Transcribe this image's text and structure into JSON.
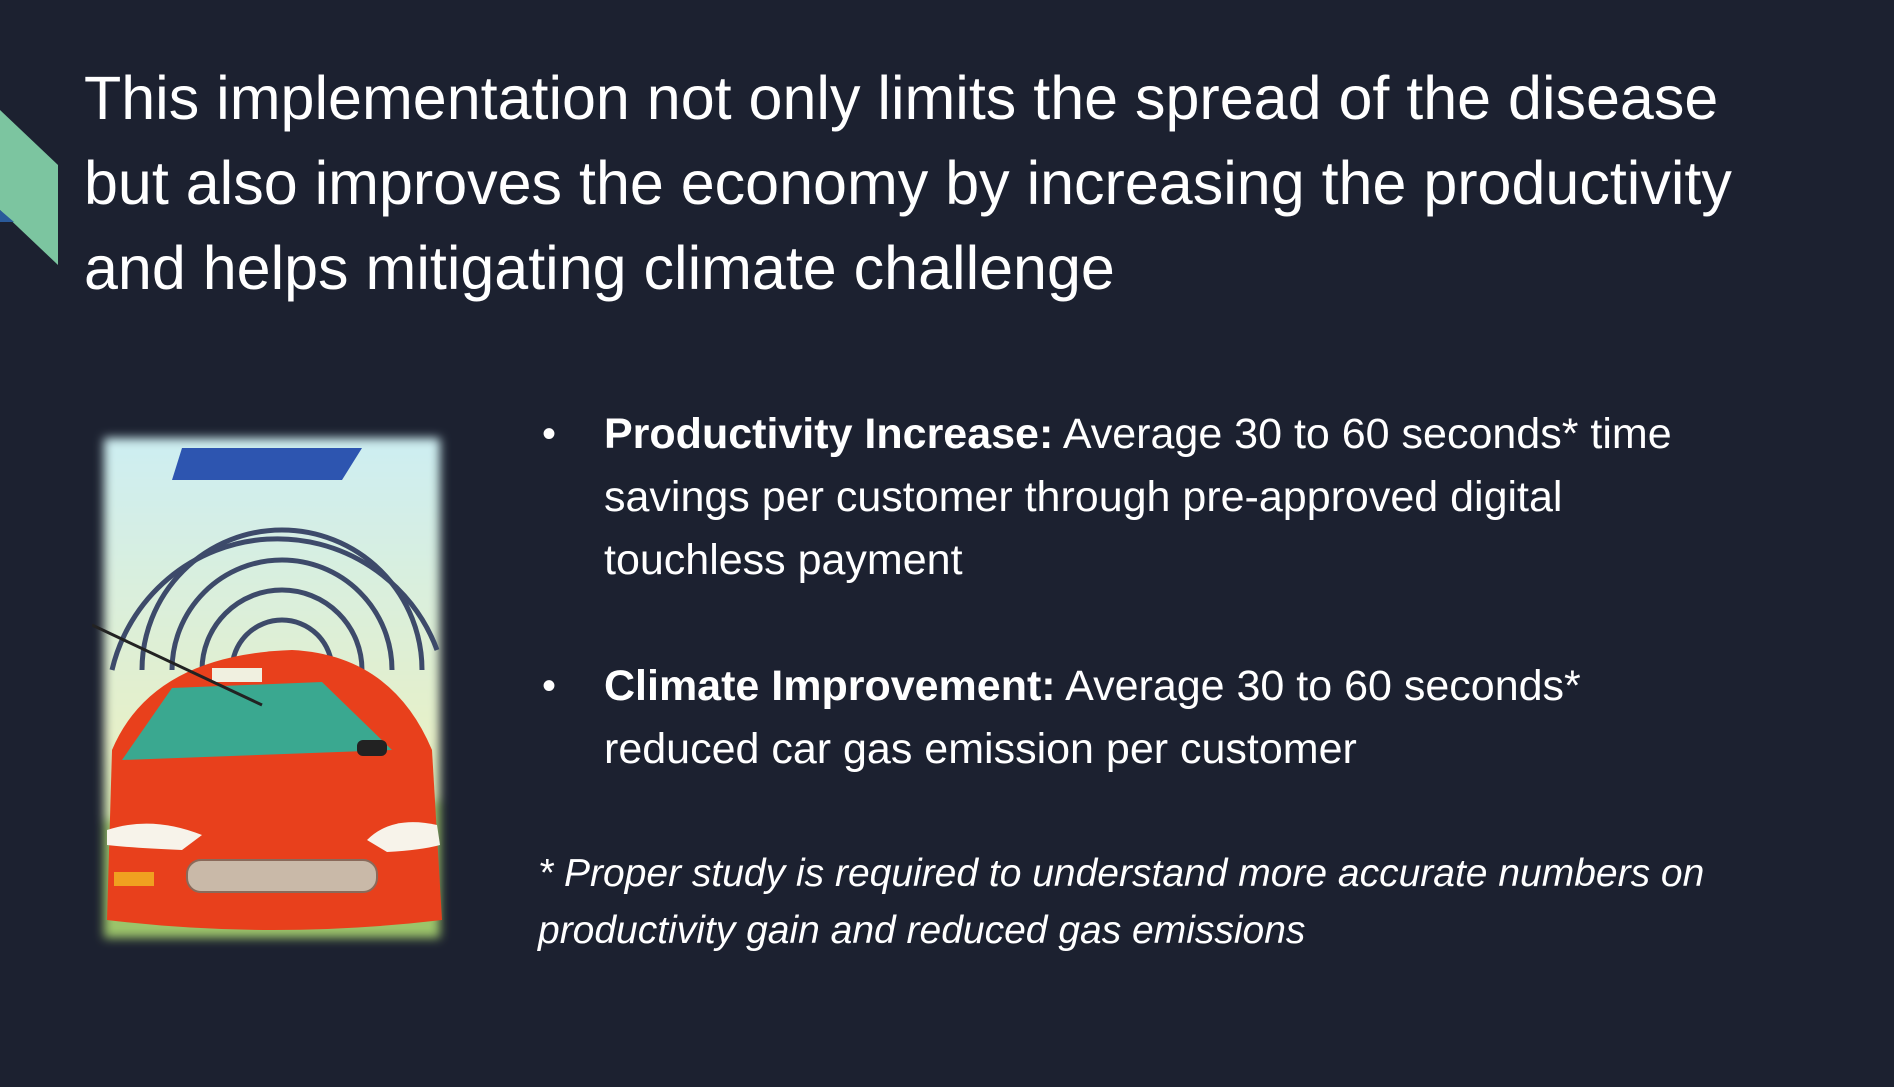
{
  "title_lines": [
    "This implementation not only limits the spread of the disease",
    "but also improves the economy by increasing the productivity",
    "and helps mitigating climate challenge"
  ],
  "bullets": [
    {
      "label": "Productivity Increase:",
      "lines": [
        " Average 30 to 60 seconds* time",
        "savings per customer through pre-approved digital",
        "touchless payment"
      ]
    },
    {
      "label": "Climate Improvement:",
      "lines": [
        " Average 30 to 60 seconds*",
        "reduced car gas emission per customer"
      ]
    }
  ],
  "footnote_lines": [
    "* Proper study is required to understand more accurate numbers on",
    "productivity gain and reduced gas emissions"
  ]
}
